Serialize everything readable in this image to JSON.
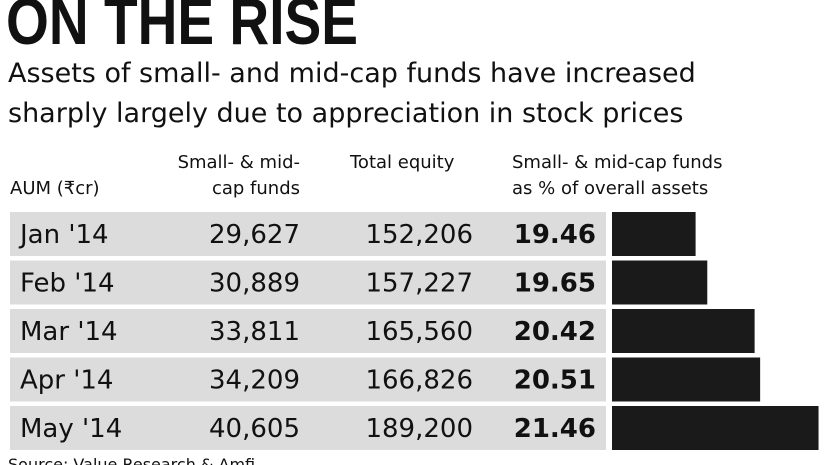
{
  "chart_data": {
    "type": "bar",
    "title": "ON THE RISE",
    "subtitle": [
      "Assets of small- and mid-cap funds have increased",
      "sharply largely due to appreciation in stock prices"
    ],
    "columns": [
      "AUM (₹cr)",
      [
        "Small- & mid-",
        "cap funds"
      ],
      "Total equity",
      [
        "Small- & mid-cap funds",
        "as % of overall assets"
      ]
    ],
    "categories": [
      "Jan '14",
      "Feb '14",
      "Mar '14",
      "Apr '14",
      "May '14"
    ],
    "small_mid": [
      "29,627",
      "30,889",
      "33,811",
      "34,209",
      "40,605"
    ],
    "total_equity": [
      "152,206",
      "157,227",
      "165,560",
      "166,826",
      "189,200"
    ],
    "values": [
      19.46,
      19.65,
      20.42,
      20.51,
      21.46
    ],
    "color": "#1a1a1a",
    "xlim": [
      18.1,
      21.5
    ],
    "source": "Source: Value Research & Amfi"
  }
}
